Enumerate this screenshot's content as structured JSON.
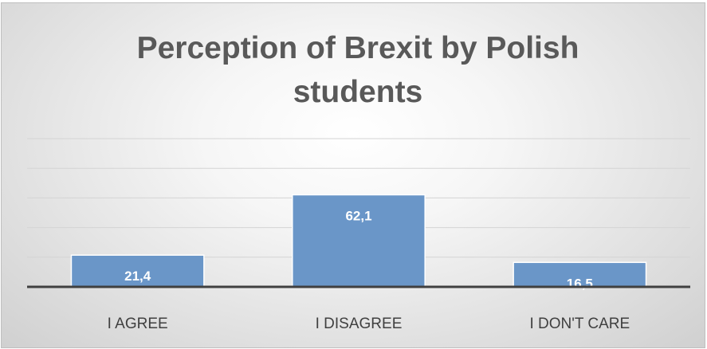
{
  "chart_data": {
    "type": "bar",
    "title_lines": [
      "Perception of Brexit by Polish",
      "students"
    ],
    "categories": [
      "I AGREE",
      "I DISAGREE",
      "I DON'T CARE"
    ],
    "values": [
      21.4,
      62.1,
      16.5
    ],
    "data_labels": [
      "21,4",
      "62,1",
      "16,5"
    ],
    "xlabel": "",
    "ylabel": "",
    "ylim": [
      0,
      100
    ],
    "y_axis_labels_visible": false,
    "grid": true,
    "legend": "none",
    "bar_color": "#6a96c8",
    "bar_border_color": "#ffffff"
  }
}
